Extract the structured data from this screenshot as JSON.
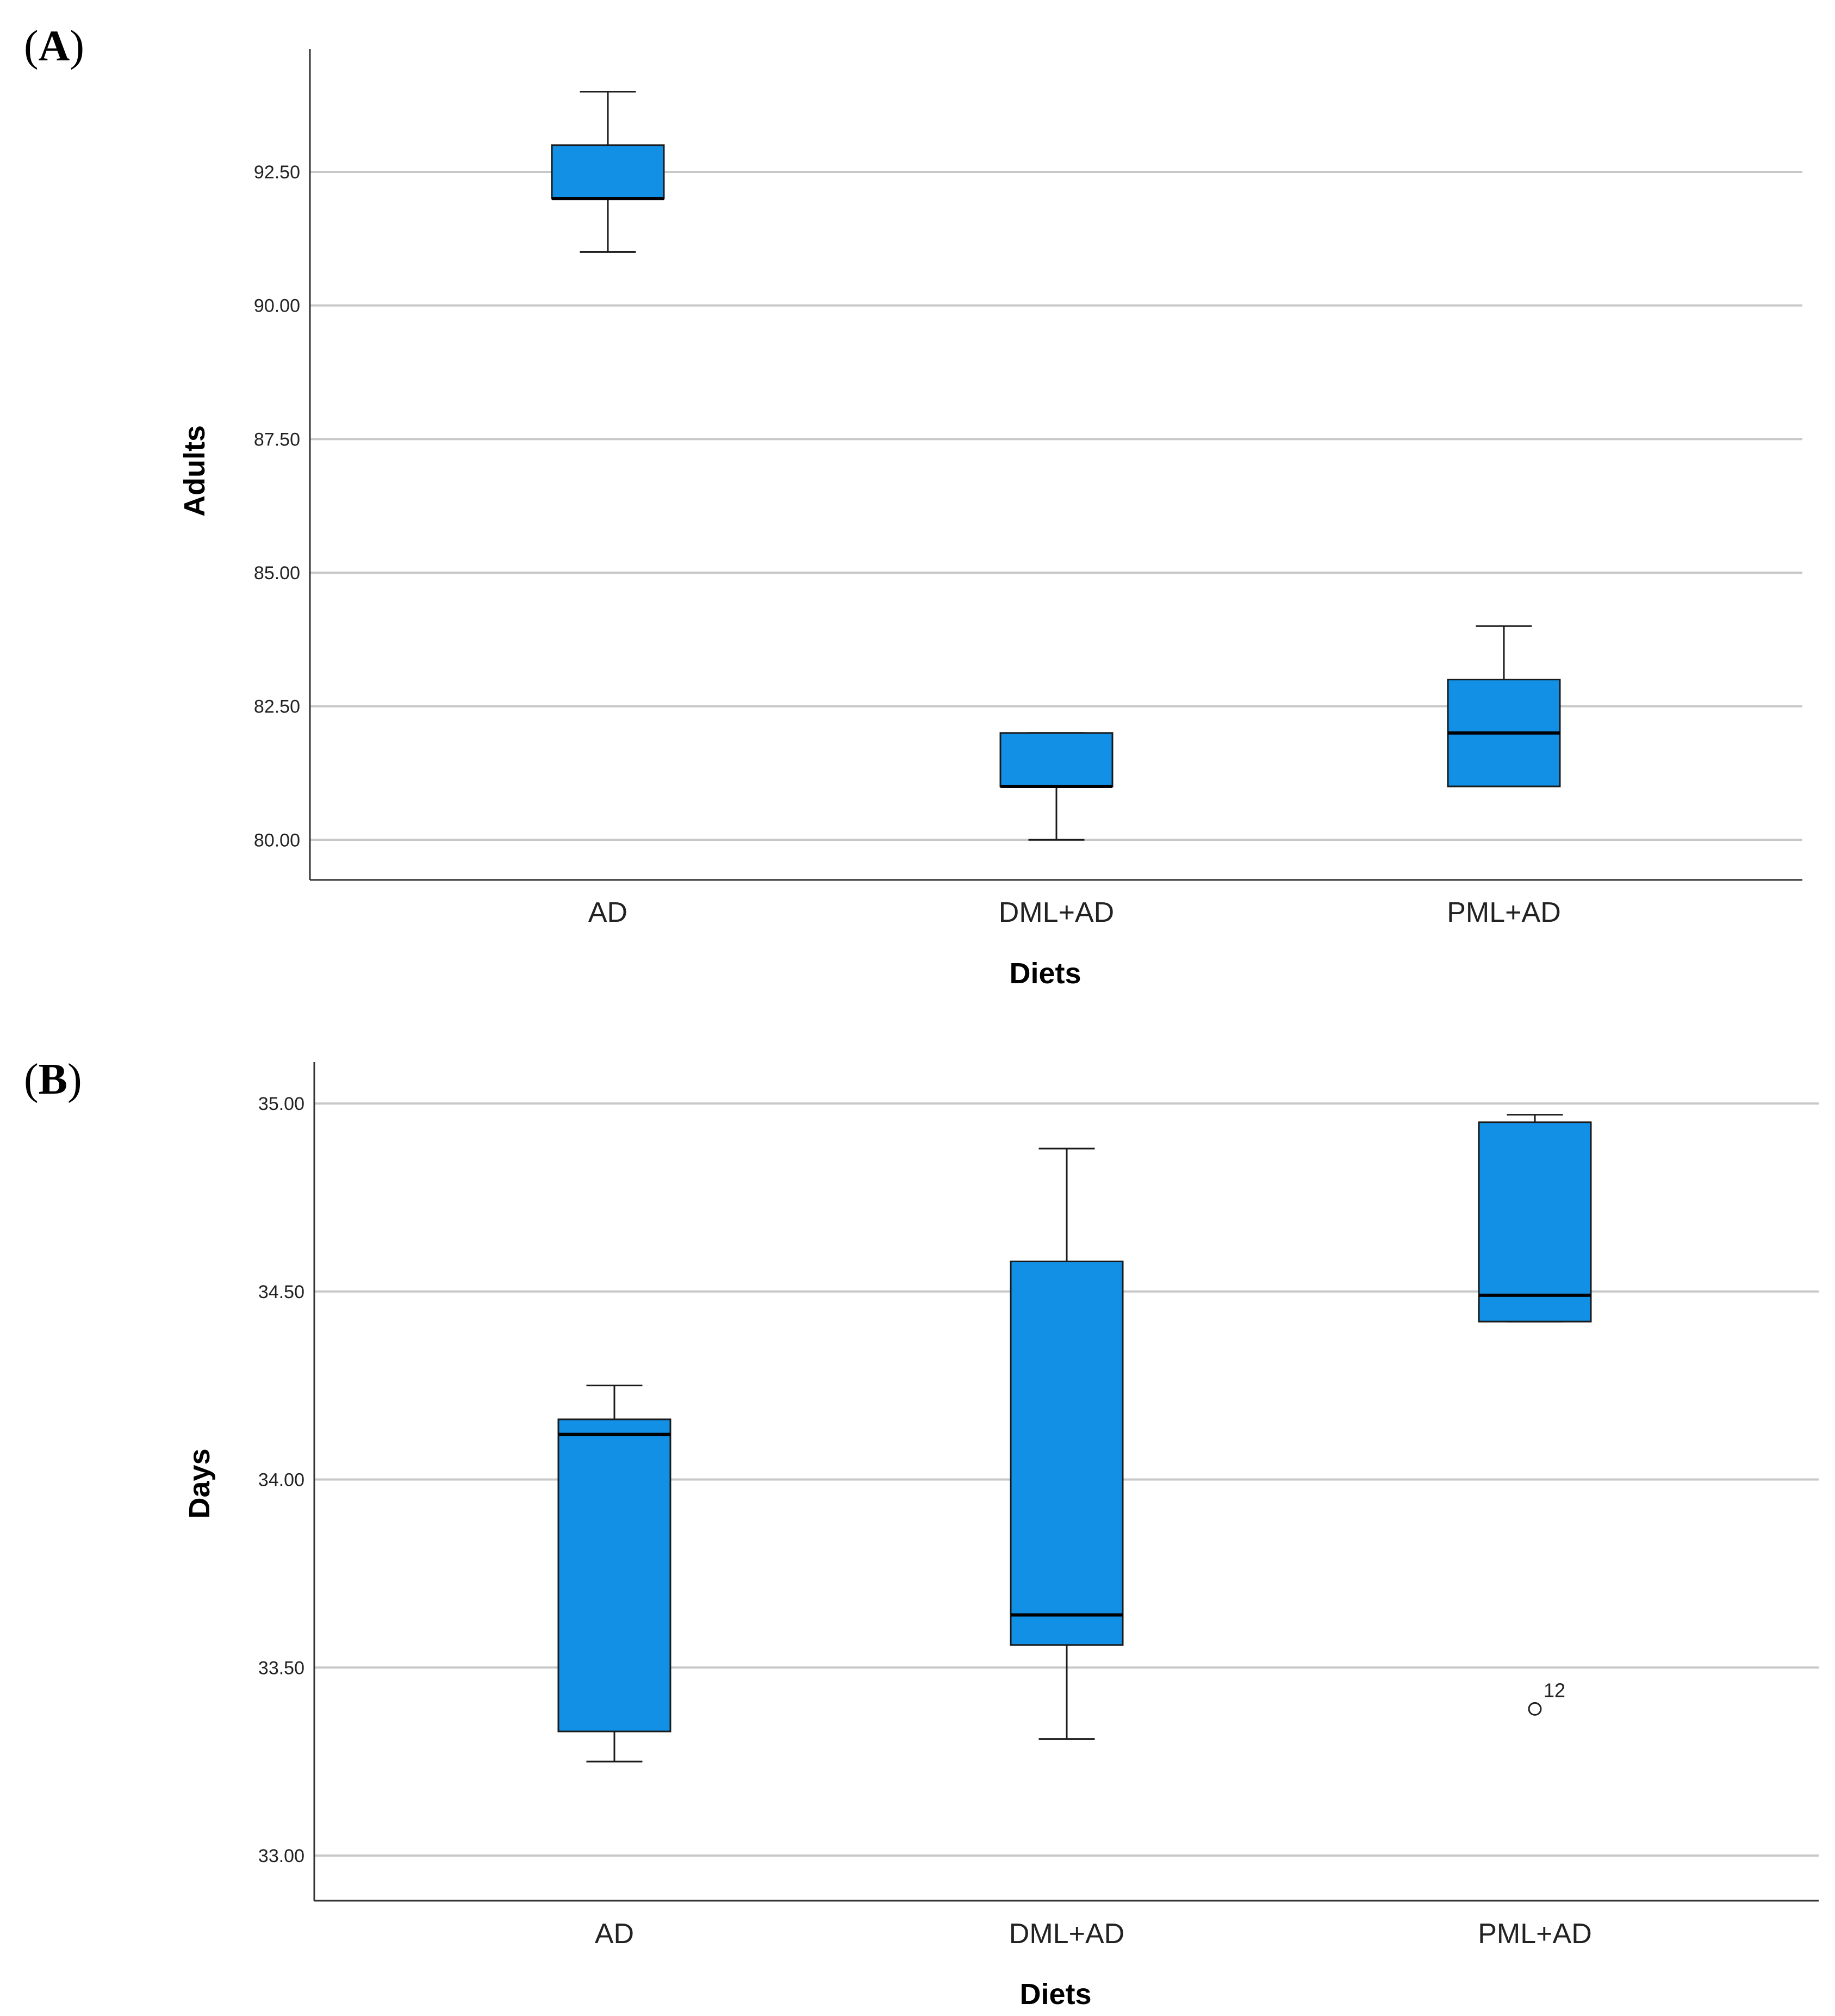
{
  "panels": [
    {
      "label_open": "(",
      "label": "A",
      "label_close": ")"
    },
    {
      "label_open": "(",
      "label": "B",
      "label_close": ")"
    }
  ],
  "colors": {
    "box_fill": "#1290e6",
    "box_stroke": "#1a1a1a",
    "grid": "#c8c8c8",
    "axis": "#333333"
  },
  "chart_data": [
    {
      "type": "box",
      "title": "",
      "xlabel": "Diets",
      "ylabel": "Adults",
      "categories": [
        "AD",
        "DML+AD",
        "PML+AD"
      ],
      "yticks": [
        80.0,
        82.5,
        85.0,
        87.5,
        90.0,
        92.5
      ],
      "ytick_labels": [
        "80.00",
        "82.50",
        "85.00",
        "87.50",
        "90.00",
        "92.50"
      ],
      "ylim": [
        79.25,
        94.8
      ],
      "grid": true,
      "boxes": [
        {
          "category": "AD",
          "min": 91,
          "q1": 92,
          "median": 92,
          "q3": 93,
          "max": 94
        },
        {
          "category": "DML+AD",
          "min": 80,
          "q1": 81,
          "median": 81,
          "q3": 82,
          "max": 82
        },
        {
          "category": "PML+AD",
          "min": 81,
          "q1": 81,
          "median": 82,
          "q3": 83,
          "max": 84
        }
      ],
      "outliers": []
    },
    {
      "type": "box",
      "title": "",
      "xlabel": "Diets",
      "ylabel": "Days",
      "categories": [
        "AD",
        "DML+AD",
        "PML+AD"
      ],
      "yticks": [
        33.0,
        33.5,
        34.0,
        34.5,
        35.0
      ],
      "ytick_labels": [
        "33.00",
        "33.50",
        "34.00",
        "34.50",
        "35.00"
      ],
      "ylim": [
        32.88,
        35.11
      ],
      "grid": true,
      "boxes": [
        {
          "category": "AD",
          "min": 33.25,
          "q1": 33.33,
          "median": 34.12,
          "q3": 34.16,
          "max": 34.25
        },
        {
          "category": "DML+AD",
          "min": 33.31,
          "q1": 33.56,
          "median": 33.64,
          "q3": 34.58,
          "max": 34.88
        },
        {
          "category": "PML+AD",
          "min": 34.42,
          "q1": 34.42,
          "median": 34.49,
          "q3": 34.95,
          "max": 34.97
        }
      ],
      "outliers": [
        {
          "category": "PML+AD",
          "value": 33.39,
          "label": "12"
        }
      ]
    }
  ]
}
